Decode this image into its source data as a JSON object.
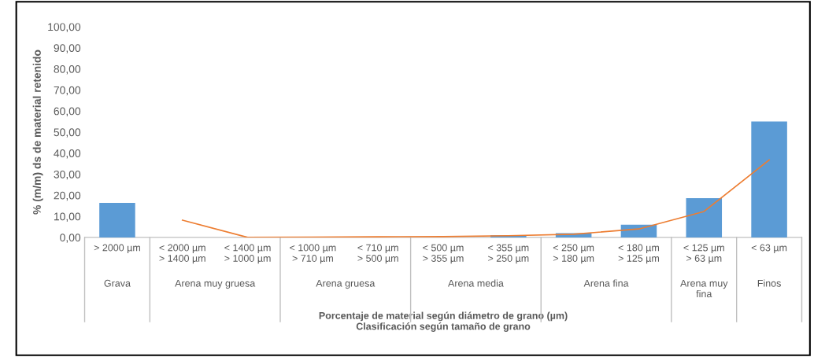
{
  "chart_data": {
    "type": "bar",
    "ylabel": "% (m/m) ds de material retenido",
    "xlabel": "Porcentaje de material según diámetro de grano (µm)\nClasificación según tamaño de grano",
    "categories": [
      "> 2000 µm",
      "< 2000 µm\n> 1400 µm",
      "< 1400 µm\n> 1000 µm",
      "< 1000 µm\n> 710 µm",
      "< 710 µm\n> 500 µm",
      "< 500 µm\n> 355 µm",
      "< 355 µm\n> 250 µm",
      "< 250 µm\n> 180 µm",
      "< 180 µm\n> 125 µm",
      "< 125 µm\n> 63 µm",
      "< 63 µm"
    ],
    "series": [
      {
        "color": "#5b9bd5",
        "values": [
          16.4,
          0,
          0,
          null,
          null,
          null,
          1,
          2,
          6,
          18.6,
          55
        ]
      },
      {
        "type": "line",
        "color": "#ed7d31",
        "values": [
          null,
          8.2,
          0,
          0.1,
          0.3,
          0.4,
          0.8,
          1.5,
          4,
          12.3,
          36.8
        ]
      }
    ],
    "annotations": [
      "Grava",
      "Arena muy gruesa",
      "Arena gruesa",
      "Arena media",
      "Arena fina",
      "Arena muy\nfina",
      "Finos"
    ],
    "ylim": [
      0,
      100
    ],
    "yticks": [
      {
        "value": 0,
        "label": "0,00"
      },
      {
        "value": 10,
        "label": "10,00"
      },
      {
        "value": 20,
        "label": "20,00"
      },
      {
        "value": 30,
        "label": "30,00"
      },
      {
        "value": 40,
        "label": "40,00"
      },
      {
        "value": 50,
        "label": "50,00"
      },
      {
        "value": 60,
        "label": "60,00"
      },
      {
        "value": 70,
        "label": "70,00"
      },
      {
        "value": 80,
        "label": "80,00"
      },
      {
        "value": 90,
        "label": "90,00"
      },
      {
        "value": 100,
        "label": "100,00"
      }
    ],
    "grid": false,
    "legend": false
  }
}
